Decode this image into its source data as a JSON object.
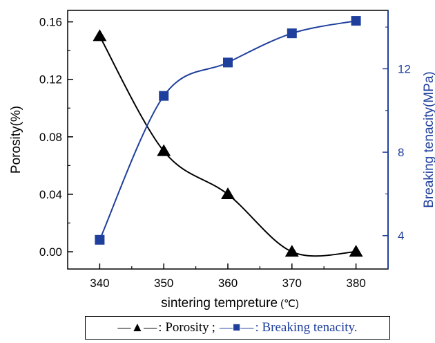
{
  "chart_data": {
    "type": "line",
    "x": [
      340,
      350,
      360,
      370,
      380
    ],
    "xlabel": "sintering tempreture",
    "xlabel_unit": "(℃)",
    "xlim": [
      335,
      385
    ],
    "xticks": [
      "340",
      "350",
      "360",
      "370",
      "380"
    ],
    "ylabel": "Porosity(%)",
    "ylim": [
      -0.012,
      0.168
    ],
    "yticks": [
      "0.00",
      "0.04",
      "0.08",
      "0.12",
      "0.16"
    ],
    "y2label": "Breaking tenacity(MPa)",
    "y2lim": [
      2.4,
      14.8
    ],
    "y2ticks": [
      "4",
      "8",
      "12"
    ],
    "grid": false,
    "legend_position": "bottom",
    "series": [
      {
        "name": "Porosity",
        "axis": "left",
        "marker": "triangle",
        "color": "#000000",
        "values": [
          0.15,
          0.07,
          0.04,
          0.0,
          0.0
        ]
      },
      {
        "name": "Breaking tenacity",
        "axis": "right",
        "marker": "square",
        "color": "#1f3f9c",
        "values": [
          3.8,
          10.7,
          12.3,
          13.7,
          14.3
        ]
      }
    ]
  },
  "legend": {
    "porosity_sym": "—▲—",
    "porosity_label": ": Porosity",
    "separator": ";",
    "tenacity_sym": "—■—",
    "tenacity_label": ": Breaking tenacity."
  }
}
